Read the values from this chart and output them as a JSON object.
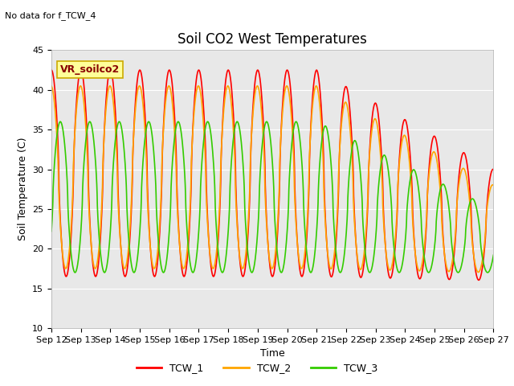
{
  "title": "Soil CO2 West Temperatures",
  "xlabel": "Time",
  "ylabel": "Soil Temperature (C)",
  "no_data_text": "No data for f_TCW_4",
  "annotation_text": "VR_soilco2",
  "ylim": [
    10,
    45
  ],
  "xtick_labels": [
    "Sep 12",
    "Sep 13",
    "Sep 14",
    "Sep 15",
    "Sep 16",
    "Sep 17",
    "Sep 18",
    "Sep 19",
    "Sep 20",
    "Sep 21",
    "Sep 22",
    "Sep 23",
    "Sep 24",
    "Sep 25",
    "Sep 26",
    "Sep 27"
  ],
  "ytick_vals": [
    10,
    15,
    20,
    25,
    30,
    35,
    40,
    45
  ],
  "line_colors": [
    "#ff0000",
    "#ffa500",
    "#33cc00"
  ],
  "line_labels": [
    "TCW_1",
    "TCW_2",
    "TCW_3"
  ],
  "line_width": 1.2,
  "bg_color": "#e8e8e8",
  "fig_color": "#ffffff",
  "annotation_bg": "#ffff99",
  "annotation_border": "#ccaa00",
  "title_fontsize": 12,
  "label_fontsize": 9,
  "tick_fontsize": 8,
  "legend_fontsize": 9
}
